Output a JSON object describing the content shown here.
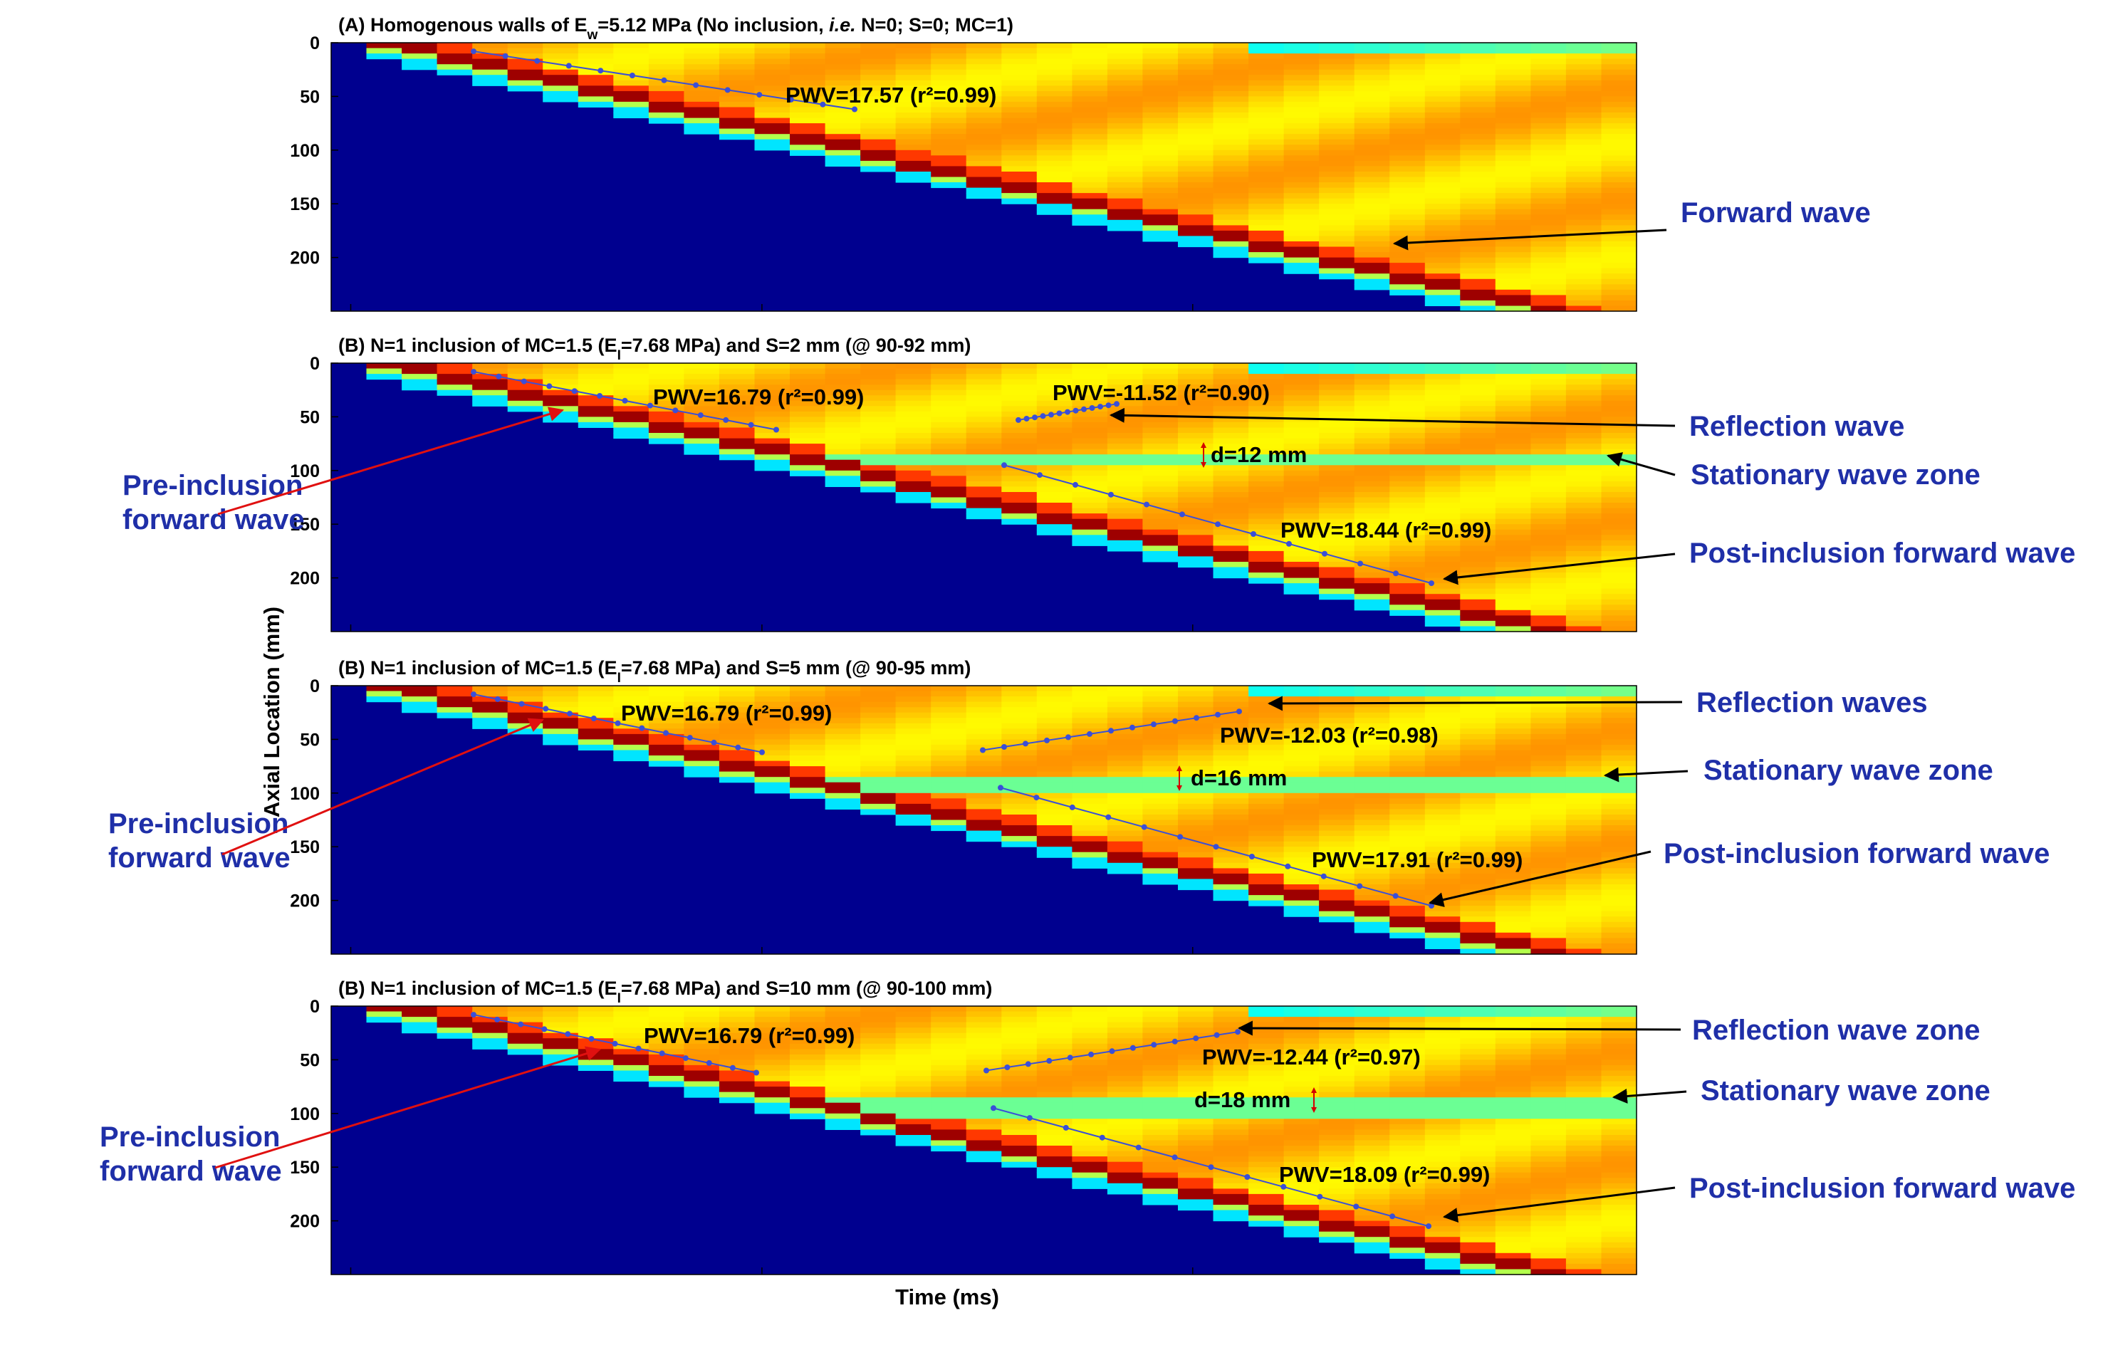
{
  "figure": {
    "xlabel": "Time (ms)",
    "ylabel": "Axial Location (mm)"
  },
  "chart_data": [
    {
      "type": "heatmap",
      "title": "(A) Homogenous walls of E_w=5.12 MPa (No inclusion, i.e. N=0; S=0; MC=1)",
      "title_parts": {
        "a": "(A) Homogenous walls of E",
        "sub": "w",
        "b": "=5.12 MPa (No inclusion, ",
        "ital": "i.e.",
        "c": " N=0; S=0; MC=1)"
      },
      "ylim": [
        0,
        250
      ],
      "yticks": [
        "0",
        "50",
        "100",
        "150",
        "200"
      ],
      "xticks": [
        "",
        "",
        ""
      ],
      "has_inclusion": false,
      "inclusion_mm": null,
      "fits": [
        {
          "label": "PWV=17.57 (r²=0.99)",
          "pwv": 17.57,
          "r2": 0.99,
          "y_start": 8,
          "y_end": 62
        }
      ],
      "annotations": [
        {
          "text": "Forward wave",
          "arrow": "black"
        }
      ]
    },
    {
      "type": "heatmap",
      "title": "(B) N=1 inclusion of MC=1.5 (E_I=7.68 MPa) and S=2 mm (@ 90-92 mm)",
      "title_parts": {
        "a": "(B) N=1 inclusion of MC=1.5 (E",
        "sub": "I",
        "b": "=7.68 MPa) and S=2 mm (@ 90-92 mm)"
      },
      "ylim": [
        0,
        250
      ],
      "yticks": [
        "0",
        "50",
        "100",
        "150",
        "200"
      ],
      "xticks": [
        "",
        "",
        ""
      ],
      "has_inclusion": true,
      "inclusion_mm": [
        90,
        92
      ],
      "fits": [
        {
          "label": "PWV=16.79 (r²=0.99)",
          "pwv": 16.79,
          "r2": 0.99,
          "y_start": 8,
          "y_end": 62
        },
        {
          "label": "PWV=-11.52 (r²=0.90)",
          "pwv": -11.52,
          "r2": 0.9,
          "y_start": 53,
          "y_end": 38
        },
        {
          "label": "PWV=18.44 (r²=0.99)",
          "pwv": 18.44,
          "r2": 0.99,
          "y_start": 95,
          "y_end": 205
        }
      ],
      "distance_label": "d=12 mm",
      "annotations": [
        {
          "text": "Reflection wave",
          "arrow": "black"
        },
        {
          "text": "Stationary wave zone",
          "arrow": "black"
        },
        {
          "text": "Post-inclusion forward wave",
          "arrow": "black"
        },
        {
          "text": "Pre-inclusion\nforward wave",
          "arrow": "red"
        }
      ]
    },
    {
      "type": "heatmap",
      "title": "(B) N=1 inclusion of MC=1.5 (E_I=7.68 MPa) and S=5 mm (@ 90-95 mm)",
      "title_parts": {
        "a": "(B) N=1 inclusion of MC=1.5 (E",
        "sub": "I",
        "b": "=7.68 MPa) and S=5 mm (@ 90-95 mm)"
      },
      "ylim": [
        0,
        250
      ],
      "yticks": [
        "0",
        "50",
        "100",
        "150",
        "200"
      ],
      "xticks": [
        "",
        "",
        ""
      ],
      "has_inclusion": true,
      "inclusion_mm": [
        90,
        95
      ],
      "fits": [
        {
          "label": "PWV=16.79 (r²=0.99)",
          "pwv": 16.79,
          "r2": 0.99,
          "y_start": 8,
          "y_end": 62
        },
        {
          "label": "PWV=-12.03 (r²=0.98)",
          "pwv": -12.03,
          "r2": 0.98,
          "y_start": 60,
          "y_end": 24
        },
        {
          "label": "PWV=17.91 (r²=0.99)",
          "pwv": 17.91,
          "r2": 0.99,
          "y_start": 95,
          "y_end": 205
        }
      ],
      "distance_label": "d=16 mm",
      "annotations": [
        {
          "text": "Reflection waves",
          "arrow": "black"
        },
        {
          "text": "Stationary wave zone",
          "arrow": "black"
        },
        {
          "text": "Post-inclusion forward wave",
          "arrow": "black"
        },
        {
          "text": "Pre-inclusion\nforward wave",
          "arrow": "red"
        }
      ]
    },
    {
      "type": "heatmap",
      "title": "(B) N=1 inclusion of MC=1.5 (E_I=7.68 MPa) and S=10 mm (@ 90-100 mm)",
      "title_parts": {
        "a": "(B) N=1 inclusion of MC=1.5 (E",
        "sub": "I",
        "b": "=7.68 MPa) and S=10 mm (@ 90-100 mm)"
      },
      "ylim": [
        0,
        250
      ],
      "yticks": [
        "0",
        "50",
        "100",
        "150",
        "200"
      ],
      "xticks": [
        "",
        "",
        ""
      ],
      "has_inclusion": true,
      "inclusion_mm": [
        90,
        100
      ],
      "fits": [
        {
          "label": "PWV=16.79 (r²=0.99)",
          "pwv": 16.79,
          "r2": 0.99,
          "y_start": 8,
          "y_end": 62
        },
        {
          "label": "PWV=-12.44 (r²=0.97)",
          "pwv": -12.44,
          "r2": 0.97,
          "y_start": 60,
          "y_end": 24
        },
        {
          "label": "PWV=18.09 (r²=0.99)",
          "pwv": 18.09,
          "r2": 0.99,
          "y_start": 95,
          "y_end": 205
        }
      ],
      "distance_label": "d=18 mm",
      "annotations": [
        {
          "text": "Reflection wave zone",
          "arrow": "black"
        },
        {
          "text": "Stationary wave zone",
          "arrow": "black"
        },
        {
          "text": "Post-inclusion forward wave",
          "arrow": "black"
        },
        {
          "text": "Pre-inclusion\nforward wave",
          "arrow": "red"
        }
      ]
    }
  ],
  "colors": {
    "background_low": "#00008f",
    "field": "#f4e200",
    "peak": "#d40000",
    "fit_line": "#3a4fd8",
    "annotation_text": "#1f2fa8",
    "red_arrow": "#e01010"
  }
}
